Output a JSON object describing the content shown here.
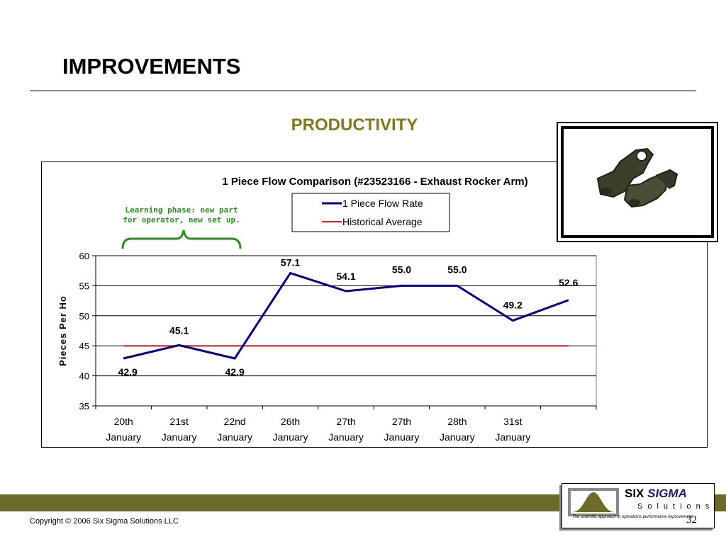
{
  "slide": {
    "title": "IMPROVEMENTS",
    "subtitle": "PRODUCTIVITY",
    "copyright": "Copyright © 2006 Six Sigma Solutions LLC",
    "page_number": "32"
  },
  "annotation": {
    "line1": "Learning phase: new part",
    "line2": "for operator, new set up."
  },
  "logo": {
    "six": "SIX",
    "sigma": "SIGMA",
    "solutions": "Solutions",
    "tagline": "The scientific approach to operations performance improvement"
  },
  "colors": {
    "title_accent": "#7f7a1e",
    "flow_rate_line": "#000080",
    "historical_line": "#e31a1c",
    "annotation_green": "#2e8b22",
    "footer_bar": "#6d6b2c"
  },
  "chart_data": {
    "type": "line",
    "title": "1 Piece Flow Comparison (#23523166 - Exhaust Rocker Arm)",
    "ylabel": "Pieces Per Ho",
    "xlabel": "",
    "ylim": [
      35,
      60
    ],
    "yticks": [
      "35",
      "40",
      "45",
      "50",
      "55",
      "60"
    ],
    "categories": [
      [
        "20th",
        "January"
      ],
      [
        "21st",
        "January"
      ],
      [
        "22nd",
        "January"
      ],
      [
        "26th",
        "January"
      ],
      [
        "27th",
        "January"
      ],
      [
        "27th",
        "January"
      ],
      [
        "28th",
        "January"
      ],
      [
        "31st",
        "January"
      ],
      [
        "",
        ""
      ]
    ],
    "series": [
      {
        "name": "1 Piece Flow Rate",
        "color": "#000080",
        "values": [
          42.9,
          45.1,
          42.9,
          57.1,
          54.1,
          55.0,
          55.0,
          49.2,
          52.6
        ],
        "labels": [
          "42.9",
          "45.1",
          "42.9",
          "57.1",
          "54.1",
          "55.0",
          "55.0",
          "49.2",
          "52.6"
        ]
      },
      {
        "name": "Historical Average",
        "color": "#e31a1c",
        "values": [
          45,
          45,
          45,
          45,
          45,
          45,
          45,
          45,
          45
        ]
      }
    ],
    "grid": true,
    "legend_position": "top-right"
  }
}
